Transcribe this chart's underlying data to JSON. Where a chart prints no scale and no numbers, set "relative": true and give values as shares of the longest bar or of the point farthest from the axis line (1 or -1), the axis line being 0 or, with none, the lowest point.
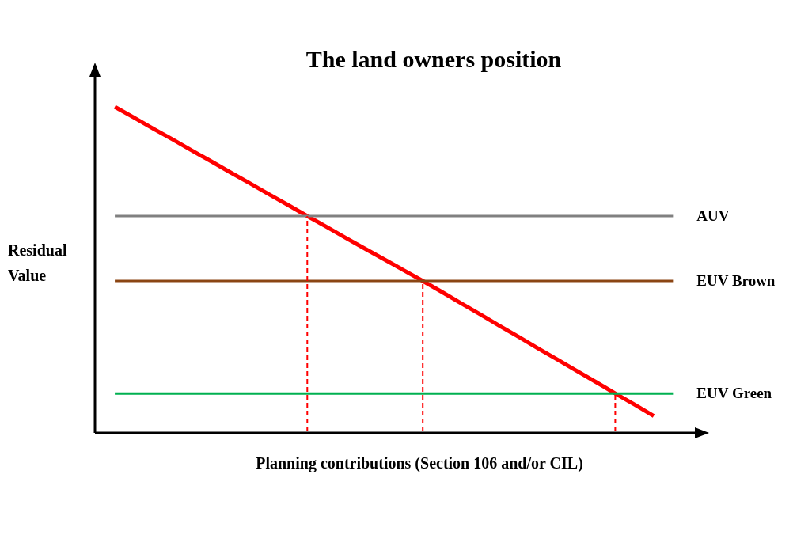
{
  "chart_data": {
    "type": "line",
    "title": "The land owners position",
    "xlabel": "Planning contributions (Section 106 and/or CIL)",
    "ylabel": "Residual Value",
    "relative": true,
    "grid": false,
    "legend": false,
    "marker": "none",
    "line_style": "solid",
    "categories": [
      null,
      null,
      null,
      null,
      null,
      null,
      null,
      null,
      null,
      null,
      null,
      null,
      null,
      null,
      null,
      null,
      null,
      null,
      null,
      null,
      null,
      null,
      null,
      null,
      null,
      null,
      null,
      null,
      null,
      null
    ],
    "series": [
      {
        "color": "#ff0000",
        "values": [
          1,
          0.967,
          0.933,
          0.9,
          0.866,
          0.833,
          0.799,
          0.766,
          0.732,
          0.699,
          0.665,
          0.632,
          0.598,
          0.565,
          0.532,
          0.499,
          0.466,
          0.432,
          0.397,
          0.363,
          0.328,
          0.294,
          0.259,
          0.225,
          0.19,
          0.156,
          0.121,
          0.087,
          0.052,
          null
        ]
      },
      {
        "name": "AUV",
        "color": "#808080",
        "values": [
          0.665,
          0.665,
          0.665,
          0.665,
          0.665,
          0.665,
          0.665,
          0.665,
          0.665,
          0.665,
          0.665,
          0.665,
          0.665,
          0.665,
          0.665,
          0.665,
          0.665,
          0.665,
          0.665,
          0.665,
          0.665,
          0.665,
          0.665,
          0.665,
          0.665,
          0.665,
          0.665,
          0.665,
          0.665,
          0.665
        ]
      },
      {
        "name": "EUV Brown",
        "color": "#8b4513",
        "values": [
          0.466,
          0.466,
          0.466,
          0.466,
          0.466,
          0.466,
          0.466,
          0.466,
          0.466,
          0.466,
          0.466,
          0.466,
          0.466,
          0.466,
          0.466,
          0.466,
          0.466,
          0.466,
          0.466,
          0.466,
          0.466,
          0.466,
          0.466,
          0.466,
          0.466,
          0.466,
          0.466,
          0.466,
          0.466,
          0.466
        ]
      },
      {
        "name": "EUV Green",
        "color": "#00b050",
        "values": [
          0.121,
          0.121,
          0.121,
          0.121,
          0.121,
          0.121,
          0.121,
          0.121,
          0.121,
          0.121,
          0.121,
          0.121,
          0.121,
          0.121,
          0.121,
          0.121,
          0.121,
          0.121,
          0.121,
          0.121,
          0.121,
          0.121,
          0.121,
          0.121,
          0.121,
          0.121,
          0.121,
          0.121,
          0.121,
          0.121
        ]
      }
    ]
  }
}
